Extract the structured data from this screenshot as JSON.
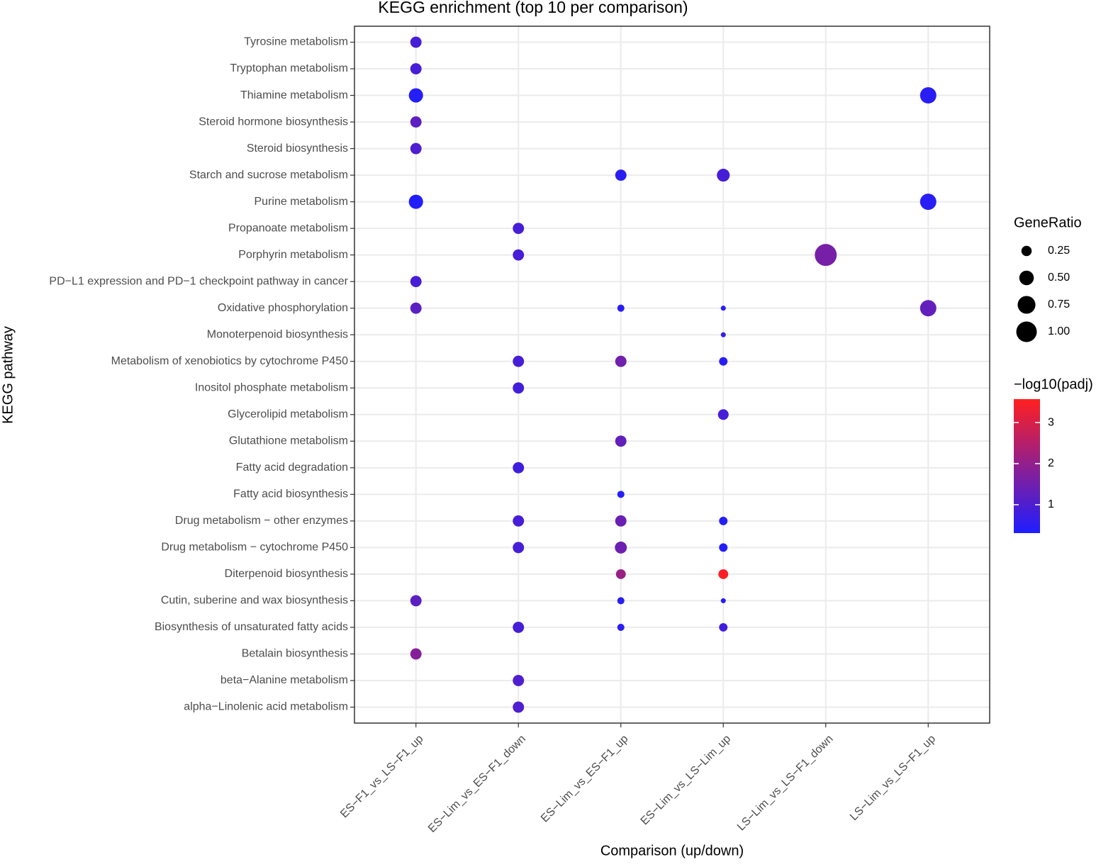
{
  "chart_data": {
    "type": "dot",
    "title": "KEGG enrichment (top 10 per comparison)",
    "x_label": "Comparison (up/down)",
    "y_label": "KEGG pathway",
    "y_categories": [
      "Tyrosine metabolism",
      "Tryptophan metabolism",
      "Thiamine metabolism",
      "Steroid hormone biosynthesis",
      "Steroid biosynthesis",
      "Starch and sucrose metabolism",
      "Purine metabolism",
      "Propanoate metabolism",
      "Porphyrin metabolism",
      "PD−L1 expression and PD−1 checkpoint pathway in cancer",
      "Oxidative phosphorylation",
      "Monoterpenoid biosynthesis",
      "Metabolism of xenobiotics by cytochrome P450",
      "Inositol phosphate metabolism",
      "Glycerolipid metabolism",
      "Glutathione metabolism",
      "Fatty acid degradation",
      "Fatty acid biosynthesis",
      "Drug metabolism − other enzymes",
      "Drug metabolism − cytochrome P450",
      "Diterpenoid biosynthesis",
      "Cutin, suberine and wax biosynthesis",
      "Biosynthesis of unsaturated fatty acids",
      "Betalain biosynthesis",
      "beta−Alanine metabolism",
      "alpha−Linolenic acid metabolism"
    ],
    "series": [
      {
        "name": "ES−F1_vs_LS−F1_up",
        "gene_ratio": [
          0.3,
          0.3,
          0.48,
          0.3,
          0.3,
          null,
          0.48,
          null,
          null,
          0.3,
          0.3,
          null,
          null,
          null,
          null,
          null,
          null,
          null,
          null,
          null,
          null,
          0.3,
          null,
          0.3,
          null,
          null
        ],
        "neg_log10_padj": [
          0.9,
          0.9,
          0.4,
          1.2,
          1.0,
          null,
          0.35,
          null,
          null,
          0.9,
          1.2,
          null,
          null,
          null,
          null,
          null,
          null,
          null,
          null,
          null,
          null,
          1.2,
          null,
          1.8,
          null,
          null
        ]
      },
      {
        "name": "ES−Lim_vs_ES−F1_down",
        "gene_ratio": [
          null,
          null,
          null,
          null,
          null,
          null,
          null,
          0.3,
          0.3,
          null,
          null,
          null,
          0.3,
          0.3,
          null,
          null,
          0.3,
          null,
          0.3,
          0.3,
          null,
          null,
          0.3,
          null,
          0.3,
          0.3
        ],
        "neg_log10_padj": [
          null,
          null,
          null,
          null,
          null,
          null,
          null,
          0.9,
          0.9,
          null,
          null,
          null,
          0.9,
          0.85,
          null,
          null,
          0.8,
          null,
          0.9,
          0.9,
          null,
          null,
          0.9,
          null,
          1.0,
          1.0
        ]
      },
      {
        "name": "ES−Lim_vs_ES−F1_up",
        "gene_ratio": [
          null,
          null,
          null,
          null,
          null,
          0.3,
          null,
          null,
          null,
          null,
          0.12,
          null,
          0.3,
          null,
          null,
          0.3,
          null,
          0.12,
          0.3,
          0.34,
          0.23,
          0.12,
          0.12,
          null,
          null,
          null
        ],
        "neg_log10_padj": [
          null,
          null,
          null,
          null,
          null,
          0.5,
          null,
          null,
          null,
          null,
          0.45,
          null,
          1.5,
          null,
          null,
          1.3,
          null,
          0.4,
          1.4,
          1.45,
          2.1,
          0.45,
          0.5,
          null,
          null,
          null
        ]
      },
      {
        "name": "ES−Lim_vs_LS−Lim_up",
        "gene_ratio": [
          null,
          null,
          null,
          null,
          null,
          0.39,
          null,
          null,
          null,
          null,
          0.06,
          0.06,
          0.17,
          null,
          0.27,
          null,
          null,
          null,
          0.17,
          0.17,
          0.23,
          0.06,
          0.17,
          null,
          null,
          null
        ],
        "neg_log10_padj": [
          null,
          null,
          null,
          null,
          null,
          0.9,
          null,
          null,
          null,
          null,
          0.4,
          0.7,
          0.45,
          null,
          0.9,
          null,
          null,
          null,
          0.4,
          0.4,
          3.5,
          0.4,
          0.8,
          null,
          null,
          null
        ]
      },
      {
        "name": "LS−Lim_vs_LS−F1_down",
        "gene_ratio": [
          null,
          null,
          null,
          null,
          null,
          null,
          null,
          null,
          1.14,
          null,
          null,
          null,
          null,
          null,
          null,
          null,
          null,
          null,
          null,
          null,
          null,
          null,
          null,
          null,
          null,
          null
        ],
        "neg_log10_padj": [
          null,
          null,
          null,
          null,
          null,
          null,
          null,
          null,
          1.6,
          null,
          null,
          null,
          null,
          null,
          null,
          null,
          null,
          null,
          null,
          null,
          null,
          null,
          null,
          null,
          null,
          null
        ]
      },
      {
        "name": "LS−Lim_vs_LS−F1_up",
        "gene_ratio": [
          null,
          null,
          0.63,
          null,
          null,
          null,
          0.63,
          null,
          null,
          null,
          0.63,
          null,
          null,
          null,
          null,
          null,
          null,
          null,
          null,
          null,
          null,
          null,
          null,
          null,
          null,
          null
        ],
        "neg_log10_padj": [
          null,
          null,
          0.45,
          null,
          null,
          null,
          0.45,
          null,
          null,
          null,
          1.3,
          null,
          null,
          null,
          null,
          null,
          null,
          null,
          null,
          null,
          null,
          null,
          null,
          null,
          null,
          null
        ]
      }
    ],
    "size_legend": {
      "title": "GeneRatio",
      "breaks": [
        0.25,
        {
          "value": 0.5,
          "label": "0.50"
        },
        0.75,
        {
          "value": 1,
          "label": "1.00"
        }
      ]
    },
    "color_legend": {
      "title": "−log10(padj)",
      "colorlim": [
        0.31,
        3.57
      ],
      "ticks": [
        1,
        2,
        3
      ],
      "color_low": "#1e1eff",
      "color_high": "#ff2020"
    },
    "grid": true
  }
}
